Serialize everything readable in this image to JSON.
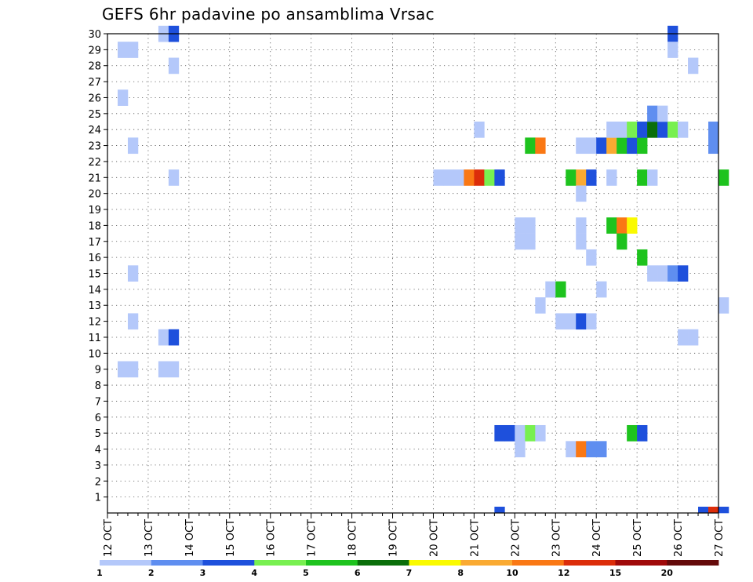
{
  "chart_data": {
    "type": "heatmap",
    "title": "GEFS 6hr padavine po ansamblima Vrsac",
    "xlabel": "",
    "ylabel": "",
    "x_ticks": [
      "12 OCT",
      "13 OCT",
      "14 OCT",
      "15 OCT",
      "16 OCT",
      "17 OCT",
      "18 OCT",
      "19 OCT",
      "20 OCT",
      "21 OCT",
      "22 OCT",
      "23 OCT",
      "24 OCT",
      "25 OCT",
      "26 OCT",
      "27 OCT"
    ],
    "x_range_days": [
      0,
      15
    ],
    "y_ticks": [
      "1",
      "2",
      "3",
      "4",
      "5",
      "6",
      "7",
      "8",
      "9",
      "10",
      "11",
      "12",
      "13",
      "14",
      "15",
      "16",
      "17",
      "18",
      "19",
      "20",
      "21",
      "22",
      "23",
      "24",
      "25",
      "26",
      "27",
      "28",
      "29",
      "30"
    ],
    "y_range": [
      0,
      30
    ],
    "grid": true,
    "step_hours": 6,
    "colorbar": {
      "labels": [
        "1",
        "2",
        "3",
        "4",
        "5",
        "6",
        "7",
        "8",
        "10",
        "12",
        "15",
        "20"
      ],
      "colors": [
        "#b4c8fa",
        "#5f8ef0",
        "#1e50dc",
        "#78f050",
        "#1ec31e",
        "#0a6e0a",
        "#fafa00",
        "#faaa32",
        "#fa7814",
        "#dc2d0a",
        "#a00a0a",
        "#640a0a"
      ]
    },
    "cells": [
      [
        0.25,
        29,
        1
      ],
      [
        0.5,
        29,
        1
      ],
      [
        0.25,
        26,
        1
      ],
      [
        0.5,
        23,
        1
      ],
      [
        0.5,
        15,
        1
      ],
      [
        0.5,
        12,
        1
      ],
      [
        0.25,
        9,
        1
      ],
      [
        0.5,
        9,
        1
      ],
      [
        1.25,
        30,
        1
      ],
      [
        1.5,
        30,
        3
      ],
      [
        1.5,
        28,
        1
      ],
      [
        1.5,
        21,
        1
      ],
      [
        1.25,
        11,
        1
      ],
      [
        1.5,
        11,
        3
      ],
      [
        1.25,
        9,
        1
      ],
      [
        1.5,
        9,
        1
      ],
      [
        8.0,
        21,
        1
      ],
      [
        8.25,
        21,
        1
      ],
      [
        8.5,
        21,
        1
      ],
      [
        8.75,
        21,
        10
      ],
      [
        9.0,
        21,
        12
      ],
      [
        9.25,
        21,
        4
      ],
      [
        9.5,
        21,
        3
      ],
      [
        9.0,
        24,
        1
      ],
      [
        9.5,
        0,
        3
      ],
      [
        9.5,
        5,
        3
      ],
      [
        9.75,
        5,
        3
      ],
      [
        10.0,
        5,
        1
      ],
      [
        10.25,
        5,
        4
      ],
      [
        10.5,
        5,
        1
      ],
      [
        10.0,
        4,
        1
      ],
      [
        10.0,
        18,
        1
      ],
      [
        10.25,
        18,
        1
      ],
      [
        10.0,
        17,
        1
      ],
      [
        10.25,
        17,
        1
      ],
      [
        10.25,
        23,
        5
      ],
      [
        10.5,
        23,
        10
      ],
      [
        10.5,
        13,
        1
      ],
      [
        10.75,
        14,
        1
      ],
      [
        11.0,
        14,
        5
      ],
      [
        11.0,
        12,
        1
      ],
      [
        11.25,
        12,
        1
      ],
      [
        11.5,
        12,
        3
      ],
      [
        11.75,
        12,
        1
      ],
      [
        11.25,
        21,
        5
      ],
      [
        11.5,
        21,
        8
      ],
      [
        11.75,
        21,
        3
      ],
      [
        11.5,
        20,
        1
      ],
      [
        11.5,
        18,
        1
      ],
      [
        11.5,
        17,
        1
      ],
      [
        11.75,
        16,
        1
      ],
      [
        11.25,
        4,
        1
      ],
      [
        11.5,
        4,
        10
      ],
      [
        11.75,
        4,
        2
      ],
      [
        12.0,
        4,
        2
      ],
      [
        12.0,
        14,
        1
      ],
      [
        11.5,
        23,
        1
      ],
      [
        11.75,
        23,
        1
      ],
      [
        12.0,
        23,
        3
      ],
      [
        12.25,
        23,
        8
      ],
      [
        12.5,
        23,
        5
      ],
      [
        12.75,
        23,
        3
      ],
      [
        13.0,
        23,
        5
      ],
      [
        12.25,
        24,
        1
      ],
      [
        12.5,
        24,
        1
      ],
      [
        12.75,
        24,
        4
      ],
      [
        13.0,
        24,
        3
      ],
      [
        13.25,
        24,
        6
      ],
      [
        13.5,
        24,
        3
      ],
      [
        13.75,
        24,
        4
      ],
      [
        14.0,
        24,
        1
      ],
      [
        13.25,
        25,
        2
      ],
      [
        13.5,
        25,
        1
      ],
      [
        12.25,
        21,
        1
      ],
      [
        13.0,
        21,
        5
      ],
      [
        13.25,
        21,
        1
      ],
      [
        12.25,
        18,
        5
      ],
      [
        12.5,
        18,
        11
      ],
      [
        12.75,
        18,
        7
      ],
      [
        12.5,
        17,
        5
      ],
      [
        13.0,
        16,
        5
      ],
      [
        13.25,
        15,
        1
      ],
      [
        13.5,
        15,
        1
      ],
      [
        13.75,
        15,
        2
      ],
      [
        14.0,
        15,
        3
      ],
      [
        12.75,
        5,
        5
      ],
      [
        13.0,
        5,
        3
      ],
      [
        13.75,
        30,
        3
      ],
      [
        13.75,
        29,
        1
      ],
      [
        14.25,
        28,
        1
      ],
      [
        14.0,
        11,
        1
      ],
      [
        14.25,
        11,
        1
      ],
      [
        14.75,
        23,
        2
      ],
      [
        14.75,
        24,
        2
      ],
      [
        15.0,
        21,
        5
      ],
      [
        15.0,
        13,
        1
      ],
      [
        14.5,
        0,
        3
      ],
      [
        14.75,
        0,
        12
      ],
      [
        15.0,
        0,
        3
      ]
    ]
  }
}
